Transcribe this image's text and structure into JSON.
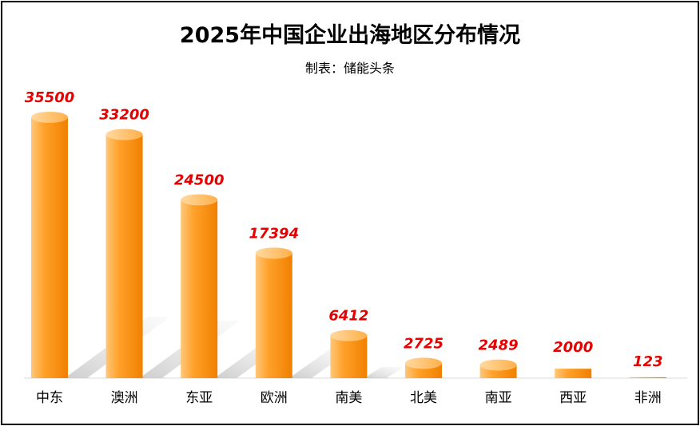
{
  "chart_data": {
    "type": "bar",
    "title": "2025年中国企业出海地区分布情况",
    "subtitle": "制表：储能头条",
    "categories": [
      "中东",
      "澳洲",
      "东亚",
      "欧洲",
      "南美",
      "北美",
      "南亚",
      "西亚",
      "非洲"
    ],
    "values": [
      35500,
      33200,
      24500,
      17394,
      6412,
      2725,
      2489,
      2000,
      123
    ],
    "value_labels": [
      "35500",
      "33200",
      "24500",
      "17394",
      "6412",
      "2725",
      "2489",
      "2000",
      "123"
    ],
    "ylim": [
      0,
      35500
    ],
    "grid": false,
    "legend": "none",
    "colors": {
      "bar_light": "#ffc77a",
      "bar_mid": "#ff9a1a",
      "bar_dark": "#f07f00",
      "label": "#e60000",
      "shadow": "#cfcfcf",
      "axis": "#d9d9d9"
    }
  }
}
